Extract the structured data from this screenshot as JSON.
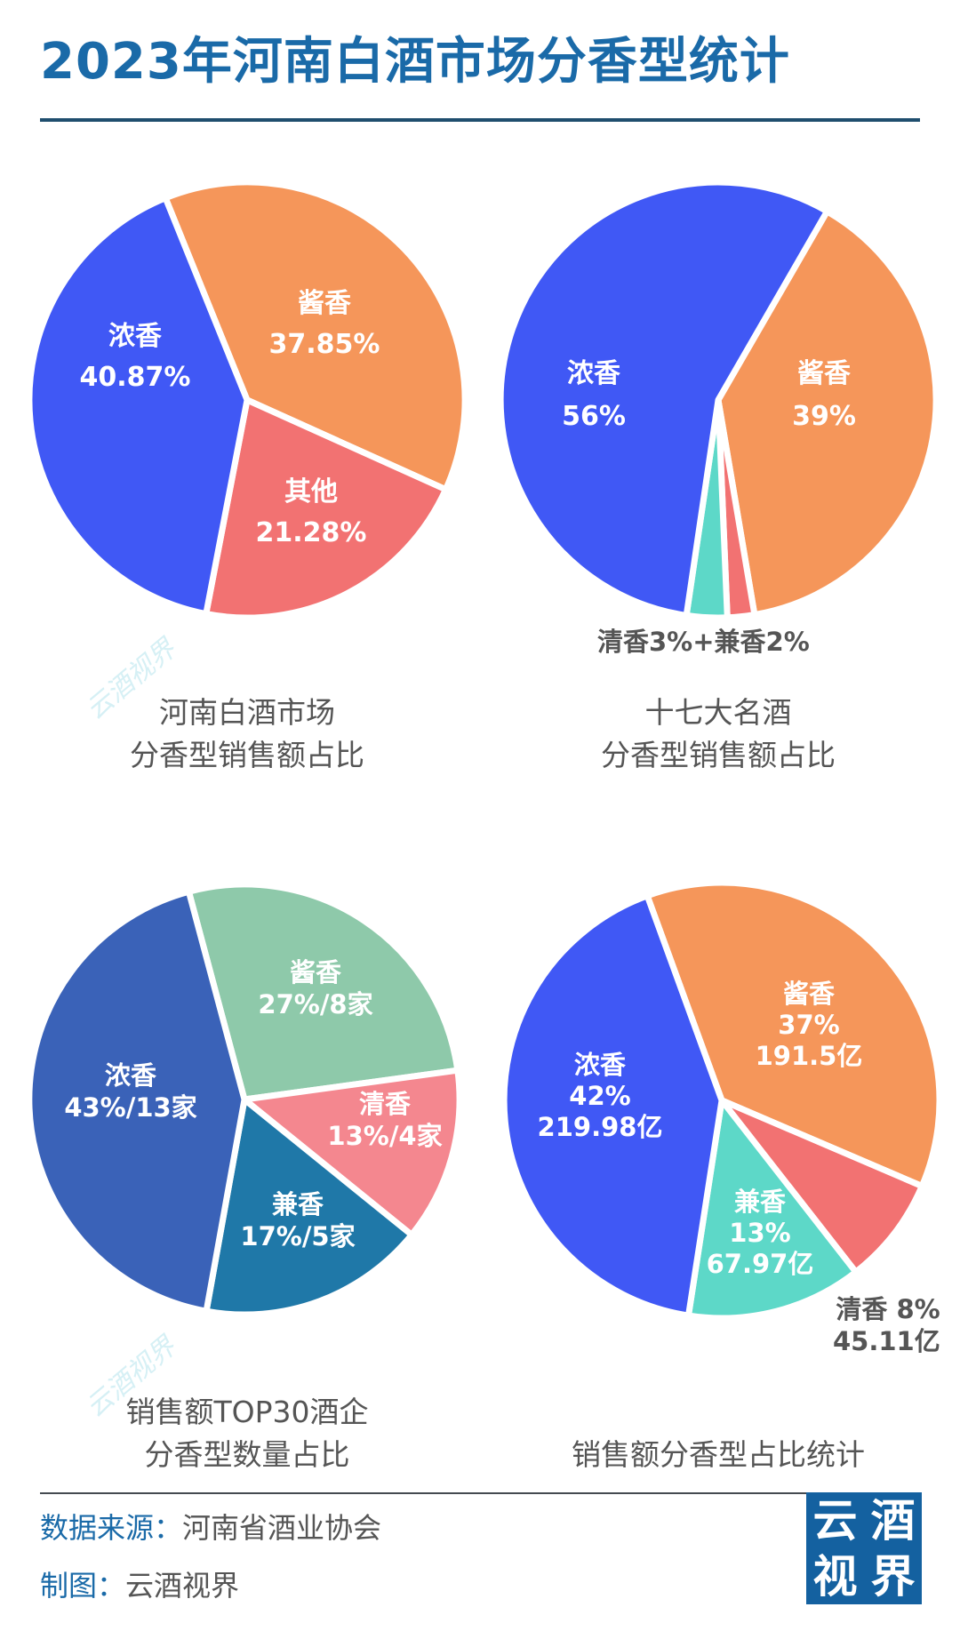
{
  "title": "2023年河南白酒市场分香型统计",
  "watermark": "云酒视界",
  "chart_data": [
    {
      "type": "pie",
      "title": "河南白酒市场分香型销售额占比",
      "categories": [
        "浓香",
        "酱香",
        "其他"
      ],
      "values": [
        40.87,
        37.85,
        21.28
      ],
      "unit": "%",
      "colors": [
        "#4058f5",
        "#f5965a",
        "#f27272"
      ],
      "labels": [
        {
          "name": "浓香",
          "value": "40.87%"
        },
        {
          "name": "酱香",
          "value": "37.85%"
        },
        {
          "name": "其他",
          "value": "21.28%"
        }
      ]
    },
    {
      "type": "pie",
      "title": "十七大名酒分香型销售额占比",
      "categories": [
        "浓香",
        "酱香",
        "兼香",
        "清香"
      ],
      "values": [
        56,
        39,
        2,
        3
      ],
      "unit": "%",
      "colors": [
        "#4058f5",
        "#f5965a",
        "#f27272",
        "#5dd8c8"
      ],
      "labels": [
        {
          "name": "浓香",
          "value": "56%"
        },
        {
          "name": "酱香",
          "value": "39%"
        }
      ],
      "external_label": "清香3%+兼香2%"
    },
    {
      "type": "pie",
      "title": "销售额TOP30酒企分香型数量占比",
      "categories": [
        "浓香",
        "酱香",
        "清香",
        "兼香"
      ],
      "values": [
        43,
        27,
        13,
        17
      ],
      "counts": [
        13,
        8,
        4,
        5
      ],
      "unit": "%",
      "colors": [
        "#3a62b8",
        "#8ec9aa",
        "#f4878f",
        "#1f78a8"
      ],
      "labels": [
        {
          "name": "浓香",
          "value": "43%/13家"
        },
        {
          "name": "酱香",
          "value": "27%/8家"
        },
        {
          "name": "清香",
          "value": "13%/4家"
        },
        {
          "name": "兼香",
          "value": "17%/5家"
        }
      ]
    },
    {
      "type": "pie",
      "title": "销售额分香型占比统计",
      "categories": [
        "浓香",
        "酱香",
        "清香",
        "兼香"
      ],
      "values": [
        42,
        37,
        8,
        13
      ],
      "amounts_yi": [
        219.98,
        191.5,
        45.11,
        67.97
      ],
      "unit": "%",
      "colors": [
        "#4058f5",
        "#f5965a",
        "#f27272",
        "#5dd8c8"
      ],
      "labels": [
        {
          "name": "浓香",
          "pct": "42%",
          "amount": "219.98亿"
        },
        {
          "name": "酱香",
          "pct": "37%",
          "amount": "191.5亿"
        },
        {
          "name": "兼香",
          "pct": "13%",
          "amount": "67.97亿"
        }
      ],
      "external_label": {
        "line1": "清香 8%",
        "line2": "45.11亿"
      }
    }
  ],
  "captions": {
    "c1": [
      "河南白酒市场",
      "分香型销售额占比"
    ],
    "c2": [
      "十七大名酒",
      "分香型销售额占比"
    ],
    "c3": [
      "销售额TOP30酒企",
      "分香型数量占比"
    ],
    "c4": [
      "销售额分香型占比统计"
    ]
  },
  "footer": {
    "source_key": "数据来源：",
    "source_value": "河南省酒业协会",
    "credit_key": "制图：",
    "credit_value": "云酒视界",
    "logo_chars": [
      "云",
      "酒",
      "视",
      "界"
    ]
  },
  "colors": {
    "title": "#1a6aa8",
    "rule": "#1f4e6e",
    "caption": "#555555",
    "logo_bg": "#1461a0"
  }
}
